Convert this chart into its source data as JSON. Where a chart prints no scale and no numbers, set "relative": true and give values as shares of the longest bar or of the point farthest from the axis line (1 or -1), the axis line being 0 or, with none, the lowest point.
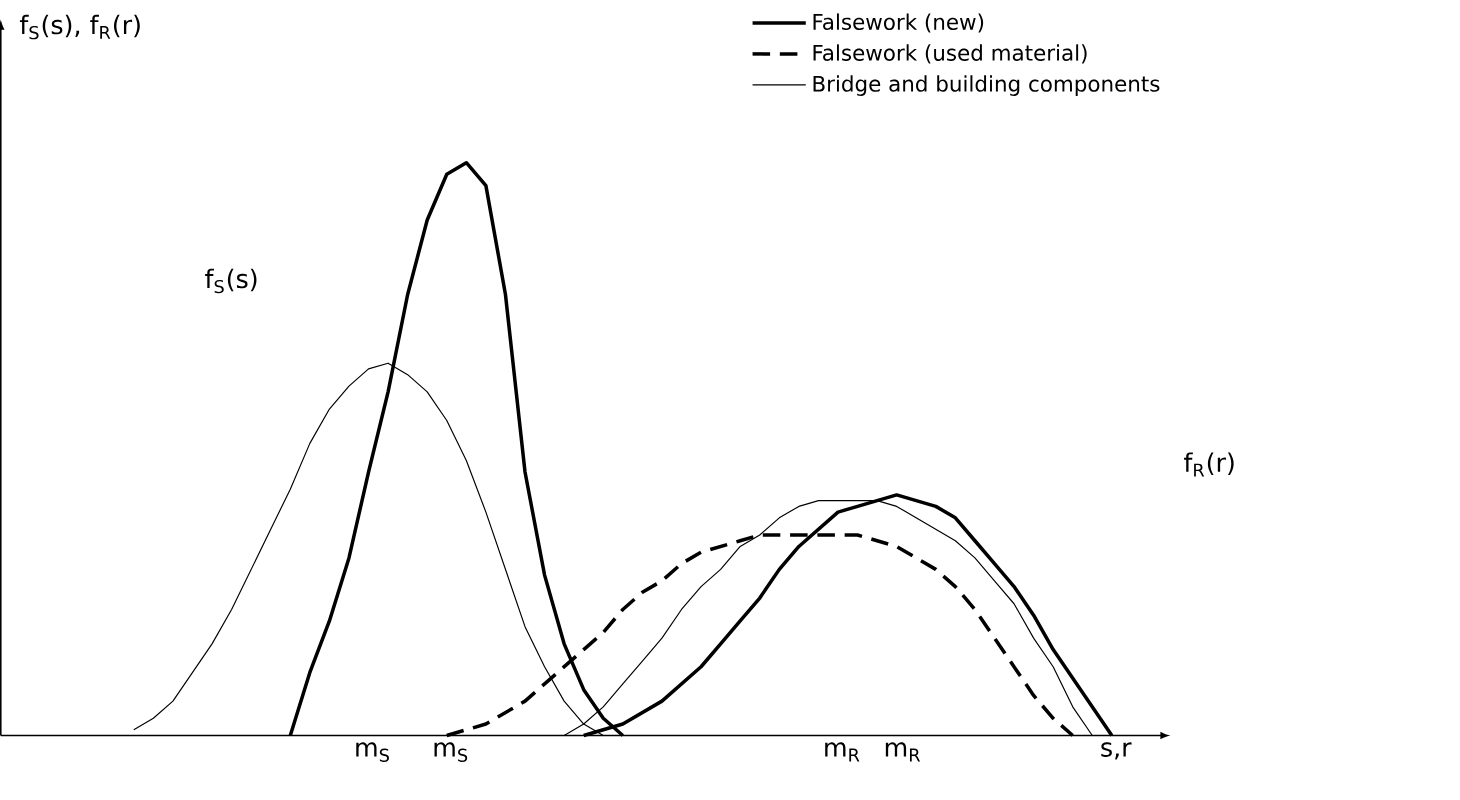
{
  "chart_data": {
    "type": "line",
    "relative": true,
    "xlabel": "s,r",
    "ylabel": "f$_{S}$(s), f$_{R}$(r)",
    "categories": [
      null,
      null,
      null,
      null,
      null,
      null,
      null,
      null,
      null,
      null,
      null,
      null,
      null,
      null,
      null,
      null,
      null,
      null,
      null,
      null,
      null,
      null,
      null,
      null,
      null,
      null,
      null,
      null,
      null,
      null,
      null,
      null,
      null,
      null,
      null,
      null,
      null,
      null,
      null,
      null,
      null,
      null,
      null,
      null,
      null,
      null,
      null,
      null,
      null,
      null,
      null,
      null,
      null
    ],
    "legend": "top right",
    "marker": "none",
    "annotations": [
      "f$_{S}$(s)",
      "f$_{R}$(r)",
      "m$_{S}$",
      "m$_{S}$",
      "m$_{R}$",
      "m$_{R}$"
    ],
    "series": [
      {
        "name": "Falsework (new)",
        "color": "#000000",
        "line_style": "solid",
        "values": [
          null,
          null,
          null,
          null,
          null,
          null,
          null,
          null,
          null,
          null,
          null,
          null,
          null,
          null,
          null,
          null,
          null,
          null,
          null,
          null,
          null,
          null,
          null,
          null,
          0,
          0.01,
          0.02,
          0.04,
          0.06,
          0.09,
          0.12,
          0.16,
          0.2,
          0.24,
          0.29,
          0.33,
          0.36,
          0.39,
          0.4,
          0.41,
          0.42,
          0.41,
          0.4,
          0.38,
          0.34,
          0.3,
          0.26,
          0.21,
          0.15,
          0.1,
          0.05,
          0,
          null
        ]
      },
      {
        "name": "Falsework (used material)",
        "color": "#000000",
        "line_style": "dashed",
        "values": [
          null,
          null,
          null,
          null,
          null,
          null,
          null,
          null,
          null,
          null,
          null,
          null,
          null,
          null,
          null,
          null,
          null,
          0,
          0.01,
          0.02,
          0.04,
          0.06,
          0.09,
          0.12,
          0.15,
          0.18,
          0.22,
          0.25,
          0.27,
          0.3,
          0.32,
          0.33,
          0.34,
          0.35,
          0.35,
          0.35,
          0.35,
          0.35,
          0.35,
          0.34,
          0.33,
          0.31,
          0.29,
          0.26,
          0.22,
          0.17,
          0.12,
          0.07,
          0.03,
          0,
          null,
          null,
          null
        ]
      },
      {
        "name": "Bridge and building components",
        "color": "#000000",
        "line_style": "solid",
        "values": [
          null,
          null,
          null,
          null,
          null,
          null,
          null,
          null,
          null,
          null,
          null,
          null,
          null,
          null,
          null,
          null,
          null,
          null,
          null,
          null,
          null,
          null,
          null,
          0,
          0.02,
          0.05,
          0.09,
          0.13,
          0.17,
          0.22,
          0.26,
          0.29,
          0.33,
          0.35,
          0.38,
          0.4,
          0.41,
          0.41,
          0.41,
          0.41,
          0.4,
          0.38,
          0.36,
          0.34,
          0.31,
          0.27,
          0.23,
          0.17,
          0.12,
          0.05,
          0,
          null,
          null
        ]
      },
      {
        "color": "#000000",
        "line_style": "solid",
        "values": [
          null,
          null,
          null,
          null,
          null,
          null,
          null,
          null,
          null,
          0,
          0.11,
          0.2,
          0.31,
          0.46,
          0.6,
          0.77,
          0.9,
          0.98,
          1,
          0.96,
          0.77,
          0.46,
          0.28,
          0.16,
          0.08,
          0.03,
          0,
          null,
          null,
          null,
          null,
          null,
          null,
          null,
          null,
          null,
          null,
          null,
          null,
          null,
          null,
          null,
          null,
          null,
          null,
          null,
          null,
          null,
          null,
          null,
          null,
          null,
          null
        ]
      },
      {
        "color": "#000000",
        "line_style": "solid",
        "values": [
          null,
          0.01,
          0.03,
          0.06,
          0.11,
          0.16,
          0.22,
          0.29,
          0.36,
          0.43,
          0.51,
          0.57,
          0.61,
          0.64,
          0.65,
          0.63,
          0.6,
          0.55,
          0.48,
          0.39,
          0.29,
          0.19,
          0.12,
          0.06,
          0.02,
          0,
          null,
          null,
          null,
          null,
          null,
          null,
          null,
          null,
          null,
          null,
          null,
          null,
          null,
          null,
          null,
          null,
          null,
          null,
          null,
          null,
          null,
          null,
          null,
          null,
          null,
          null,
          null
        ]
      }
    ]
  }
}
